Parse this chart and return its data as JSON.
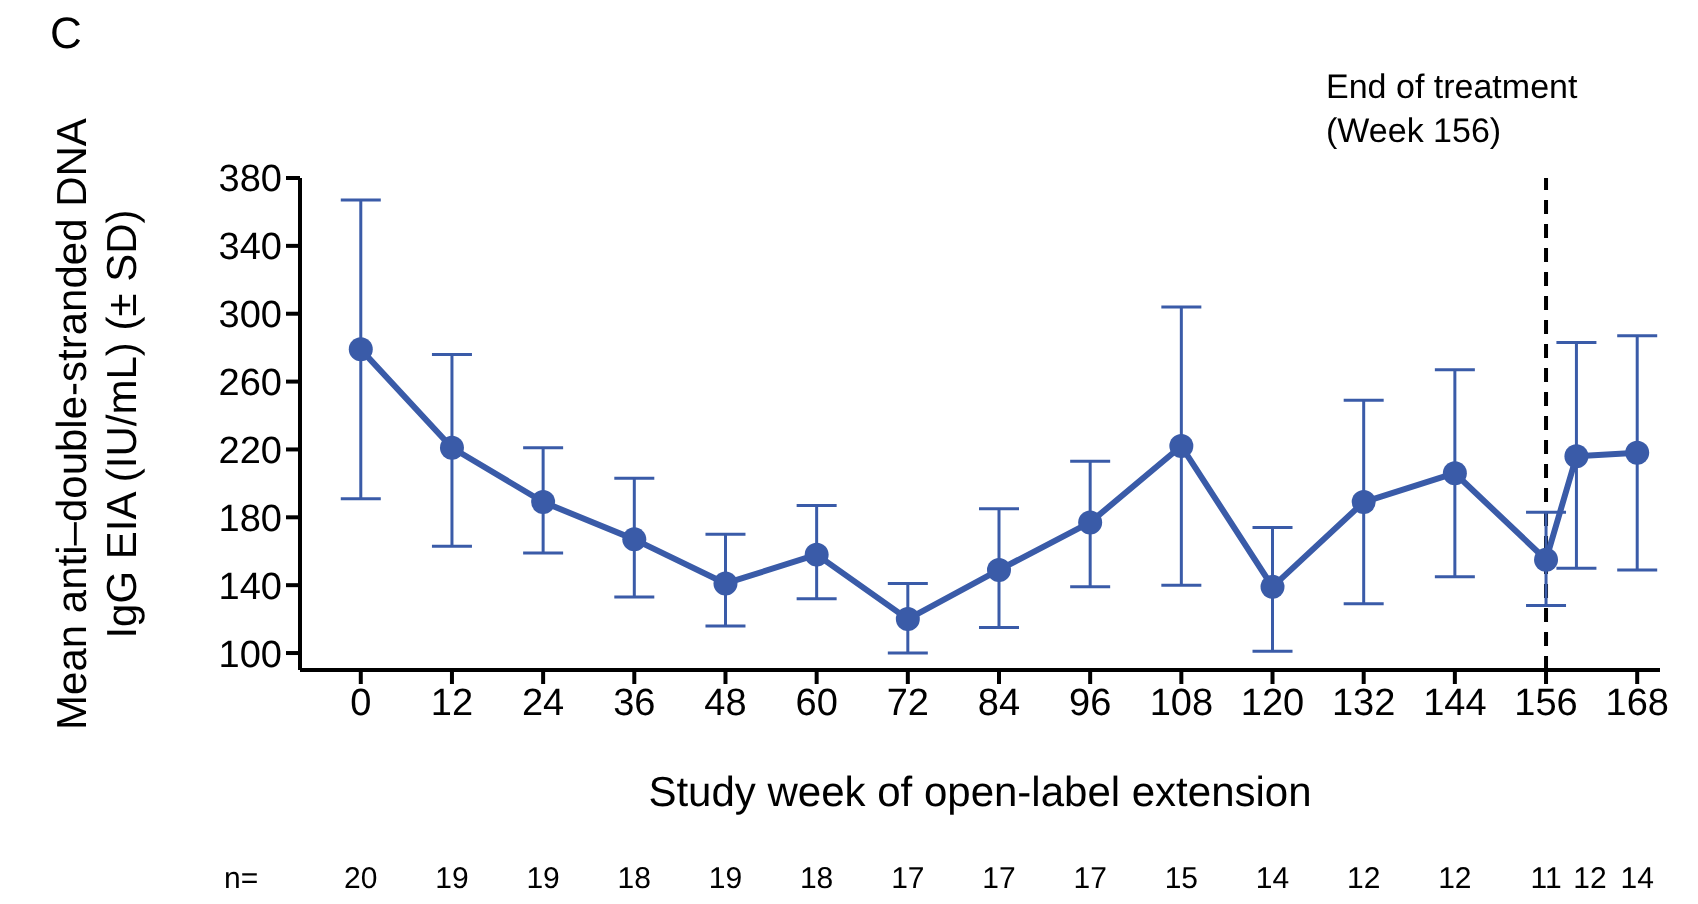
{
  "chart_data": {
    "type": "line",
    "xlabel": "Study week of open-label extension",
    "ylabel": "Mean anti–double-stranded DNA IgG EIA (IU/mL) (± SD)",
    "x": [
      0,
      12,
      24,
      36,
      48,
      60,
      72,
      84,
      96,
      108,
      120,
      132,
      144,
      156,
      160,
      168
    ],
    "series": [
      {
        "color": "#3a5ba8",
        "values": [
          279,
          221,
          189,
          167,
          141,
          158,
          120,
          149,
          177,
          222,
          139,
          189,
          206,
          155,
          216,
          218
        ],
        "errors": [
          [
            191,
            367
          ],
          [
            163,
            276
          ],
          [
            159,
            221
          ],
          [
            133,
            203
          ],
          [
            116,
            170
          ],
          [
            132,
            187
          ],
          [
            100,
            141
          ],
          [
            115,
            185
          ],
          [
            139,
            213
          ],
          [
            140,
            304
          ],
          [
            101,
            174
          ],
          [
            129,
            249
          ],
          [
            145,
            267
          ],
          [
            128,
            183
          ],
          [
            150,
            283
          ],
          [
            149,
            287
          ]
        ]
      }
    ],
    "xlim": [
      -8,
      171
    ],
    "xticks": [
      0,
      12,
      24,
      36,
      48,
      60,
      72,
      84,
      96,
      108,
      120,
      132,
      144,
      156,
      168
    ],
    "ylim": [
      90,
      380
    ],
    "yticks": [
      100,
      140,
      180,
      220,
      260,
      300,
      340,
      380
    ],
    "grid": false,
    "legend": false,
    "marker": "circle",
    "line_style": "solid",
    "ref_lines": [
      {
        "axis": "x",
        "value": 156,
        "label": "End of treatment (Week 156)",
        "color": "#000000",
        "line_style": "dashed"
      }
    ],
    "annotations": [
      "C",
      "n=",
      "20",
      "19",
      "19",
      "18",
      "19",
      "18",
      "17",
      "17",
      "17",
      "15",
      "14",
      "12",
      "12",
      "11",
      "12",
      "14"
    ]
  }
}
